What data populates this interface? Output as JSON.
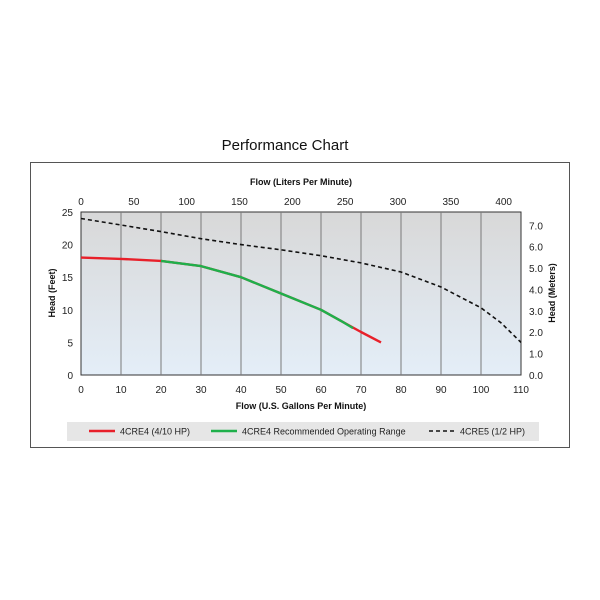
{
  "chart_data": {
    "type": "line",
    "title": "Performance Chart",
    "xlabel": "Flow (U.S. Gallons Per Minute)",
    "x2label": "Flow (Liters Per Minute)",
    "ylabel": "Head (Feet)",
    "y2label": "Head (Meters)",
    "xlim": [
      0,
      110
    ],
    "ylim": [
      0,
      25
    ],
    "x2lim": [
      0,
      416.4
    ],
    "y2lim": [
      0,
      7.62
    ],
    "x_ticks": [
      "0",
      "10",
      "20",
      "30",
      "40",
      "50",
      "60",
      "70",
      "80",
      "90",
      "100",
      "110"
    ],
    "y_ticks": [
      "0",
      "5",
      "10",
      "15",
      "20",
      "25"
    ],
    "x2_ticks": [
      "0",
      "50",
      "100",
      "150",
      "200",
      "250",
      "300",
      "350",
      "400"
    ],
    "y2_ticks": [
      "0.0",
      "1.0",
      "2.0",
      "3.0",
      "4.0",
      "5.0",
      "6.0",
      "7.0"
    ],
    "grid": "vertical",
    "legend_position": "bottom",
    "series": [
      {
        "name": "4CRE4 (4/10 HP)",
        "color": "#e8202a",
        "dash": "solid",
        "points": [
          [
            0,
            18
          ],
          [
            10,
            17.8
          ],
          [
            20,
            17.5
          ],
          [
            30,
            16.7
          ],
          [
            40,
            15
          ],
          [
            50,
            12.5
          ],
          [
            60,
            10
          ],
          [
            65,
            8.3
          ],
          [
            70,
            6.6
          ],
          [
            75,
            5
          ]
        ]
      },
      {
        "name": "4CRE4 Recommended Operating Range",
        "color": "#1fb04b",
        "dash": "solid",
        "points": [
          [
            20,
            17.5
          ],
          [
            30,
            16.7
          ],
          [
            40,
            15
          ],
          [
            50,
            12.5
          ],
          [
            60,
            10
          ],
          [
            65,
            8.3
          ],
          [
            68,
            7.2
          ]
        ]
      },
      {
        "name": "4CRE5 (1/2 HP)",
        "color": "#111111",
        "dash": "dashed",
        "points": [
          [
            0,
            24
          ],
          [
            10,
            23
          ],
          [
            20,
            22
          ],
          [
            30,
            20.9
          ],
          [
            40,
            20
          ],
          [
            50,
            19.2
          ],
          [
            60,
            18.3
          ],
          [
            70,
            17.2
          ],
          [
            80,
            15.8
          ],
          [
            90,
            13.5
          ],
          [
            100,
            10.3
          ],
          [
            105,
            8
          ],
          [
            110,
            5
          ]
        ]
      }
    ]
  }
}
